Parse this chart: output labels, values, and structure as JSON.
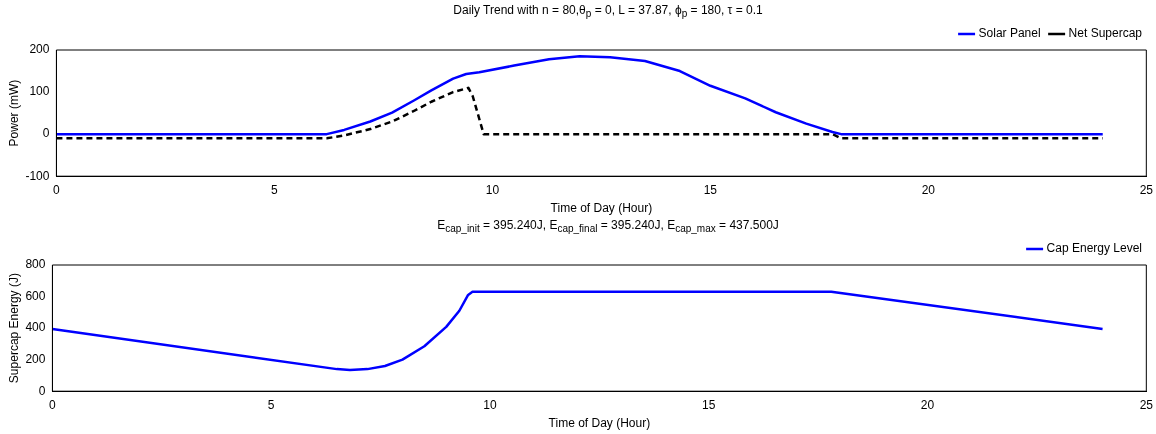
{
  "chart_data": [
    {
      "type": "line",
      "title": "Daily Trend with n = 80,θ$_{p}$ = 0, L = 37.87, ϕ$_{p}$ = 180, τ = 0.1",
      "xlabel": "Time of Day (Hour)",
      "ylabel": "Power (mW)",
      "xlim": [
        0,
        25
      ],
      "xticks": [
        0,
        5,
        10,
        15,
        20,
        25
      ],
      "ylim": [
        -100,
        200
      ],
      "yticks": [
        -100,
        0,
        100,
        200
      ],
      "grid": false,
      "legend": "top right",
      "marker": "none",
      "series": [
        {
          "name": "Solar Panel",
          "color": "#0000ff",
          "line_style": "solid",
          "x": [
            0,
            6.2,
            6.6,
            7.2,
            7.7,
            8.2,
            8.6,
            9.1,
            9.4,
            9.7,
            10.5,
            11.3,
            12,
            12.7,
            13.5,
            14.3,
            15,
            15.8,
            16.5,
            17.2,
            17.8,
            18,
            24
          ],
          "values": [
            0,
            0,
            10,
            30,
            51,
            80,
            104,
            132,
            143,
            147,
            163,
            178,
            185,
            183,
            174,
            150,
            115,
            85,
            52,
            25,
            5,
            0,
            0
          ]
        },
        {
          "name": "Net Supercap",
          "color": "#000000",
          "line_style": "dashed",
          "x": [
            0,
            6.2,
            6.6,
            7.2,
            7.7,
            8.2,
            8.6,
            9.1,
            9.45,
            9.55,
            9.8,
            17.8,
            18,
            24
          ],
          "values": [
            -10,
            -10,
            -3,
            12,
            30,
            55,
            77,
            100,
            110,
            90,
            0,
            0,
            -10,
            -10
          ]
        }
      ]
    },
    {
      "type": "line",
      "title": "E$_{cap_init}$ = 395.240J, E$_{cap_final}$ = 395.240J, E$_{cap_max}$ = 437.500J",
      "xlabel": "Time of Day (Hour)",
      "ylabel": "Supercap Energy (J)",
      "xlim": [
        0,
        25
      ],
      "xticks": [
        0,
        5,
        10,
        15,
        20,
        25
      ],
      "ylim": [
        0,
        800
      ],
      "yticks": [
        0,
        200,
        400,
        600,
        800
      ],
      "grid": false,
      "legend": "top right",
      "marker": "none",
      "series": [
        {
          "name": "Cap Energy Level",
          "color": "#0000ff",
          "line_style": "solid",
          "x": [
            0,
            6.5,
            6.8,
            7.2,
            7.6,
            8,
            8.5,
            9,
            9.3,
            9.5,
            9.6,
            17.8,
            24
          ],
          "values": [
            395,
            140,
            135,
            140,
            160,
            200,
            285,
            408,
            510,
            610,
            630,
            630,
            395
          ]
        }
      ]
    }
  ]
}
